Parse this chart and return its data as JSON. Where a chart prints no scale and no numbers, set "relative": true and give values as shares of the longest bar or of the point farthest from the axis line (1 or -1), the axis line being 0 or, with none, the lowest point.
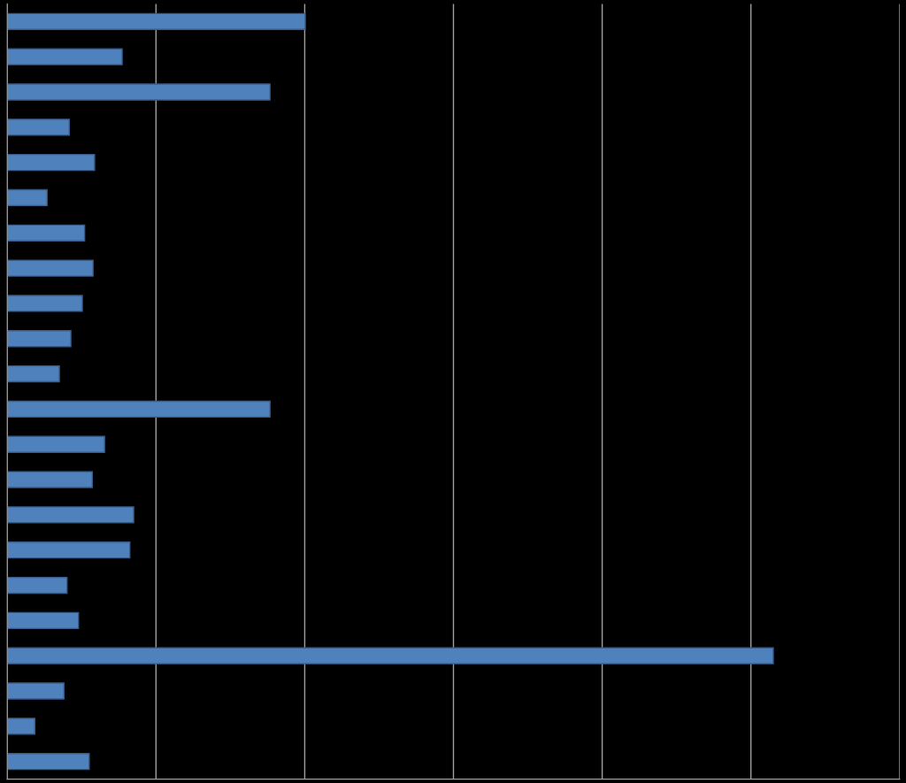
{
  "chart_data": {
    "type": "bar",
    "orientation": "horizontal",
    "relative": true,
    "grid": "x",
    "color": "#4f81bd",
    "categories": [
      null,
      null,
      null,
      null,
      null,
      null,
      null,
      null,
      null,
      null,
      null,
      null,
      null,
      null,
      null,
      null,
      null,
      null,
      null,
      null,
      null,
      null
    ],
    "values": [
      0.389,
      0.15,
      0.343,
      0.081,
      0.114,
      0.052,
      0.101,
      0.112,
      0.098,
      0.083,
      0.068,
      0.343,
      0.127,
      0.111,
      0.165,
      0.16,
      0.078,
      0.093,
      1,
      0.074,
      0.036,
      0.107
    ]
  }
}
